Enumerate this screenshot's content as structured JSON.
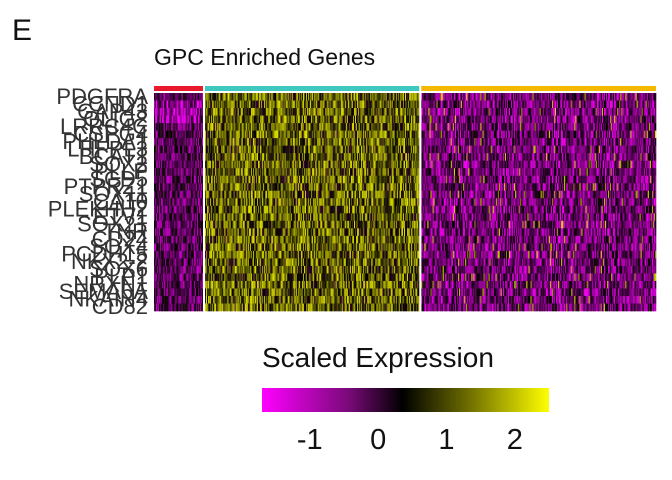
{
  "panel_letter": "E",
  "chart_data": {
    "type": "heatmap",
    "title": "GPC Enriched Genes",
    "genes": [
      "PDGFRA",
      "CCND1",
      "GAP43",
      "OLIG2",
      "LRRC4C",
      "CSPG4",
      "PHLDA1",
      "LHFPL3",
      "BCAT1",
      "SOX2",
      "PLLP",
      "SCD5",
      "PTPRZ1",
      "SOX11",
      "CA10",
      "PLEKHH2",
      "ETV1",
      "SOX21",
      "TNR",
      "CD24",
      "SOX4",
      "PCDH15",
      "NKX2-2",
      "SOX6",
      "PLP1",
      "NRXN1",
      "SEMA5A",
      "NKAIN4",
      "CD82"
    ],
    "groups": [
      {
        "color": "#e8192c",
        "cells": 48
      },
      {
        "color": "#3ec8c0",
        "cells": 210
      },
      {
        "color": "#f5b800",
        "cells": 230
      }
    ],
    "legend": {
      "title": "Scaled Expression",
      "min": -1.7,
      "max": 2.5,
      "ticks": [
        -1,
        0,
        1,
        2
      ],
      "tick_labels": [
        "-1",
        "0",
        "1",
        "2"
      ],
      "colors": [
        "#ff00ff",
        "#000000",
        "#ffff00"
      ]
    }
  }
}
